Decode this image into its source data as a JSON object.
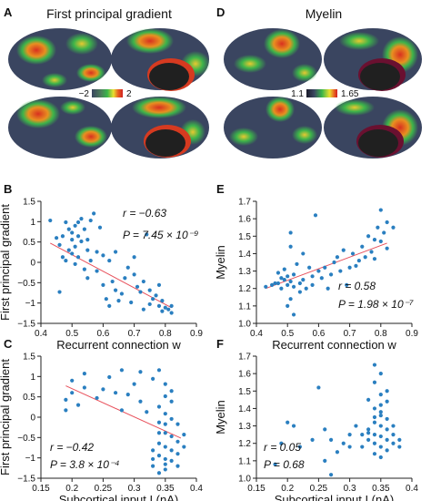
{
  "panels": {
    "A": {
      "letter": "A",
      "title": "First principal gradient",
      "cbar_min": "−2",
      "cbar_max": "2"
    },
    "D": {
      "letter": "D",
      "title": "Myelin",
      "cbar_min": "1.1",
      "cbar_max": "1.65"
    }
  },
  "colors": {
    "point": "#2a7fc0",
    "fit_line": "#e8505b",
    "brain_base": "#3a4560",
    "axis": "#222222"
  },
  "chart_data": [
    {
      "id": "B",
      "letter": "B",
      "type": "scatter",
      "xlabel": "Recurrent connection w",
      "ylabel": "First principal gradient",
      "xlim": [
        0.4,
        0.9
      ],
      "ylim": [
        -1.5,
        2.0
      ],
      "xticks": [
        "0.4",
        "0.5",
        "0.6",
        "0.7",
        "0.8",
        "0.9"
      ],
      "yticks": [
        "−1.5",
        "−1",
        "−0.5",
        "0",
        "0.5",
        "1",
        "1.5"
      ],
      "stat1": "r = −0.63",
      "stat2": "P = 7.45 × 10⁻⁹",
      "fit": [
        [
          0.43,
          0.8
        ],
        [
          0.82,
          -1.05
        ]
      ],
      "points": [
        [
          0.43,
          1.45
        ],
        [
          0.45,
          0.95
        ],
        [
          0.46,
          0.75
        ],
        [
          0.47,
          0.4
        ],
        [
          0.47,
          1.0
        ],
        [
          0.48,
          1.4
        ],
        [
          0.48,
          0.3
        ],
        [
          0.49,
          0.6
        ],
        [
          0.49,
          1.2
        ],
        [
          0.5,
          0.9
        ],
        [
          0.5,
          0.5
        ],
        [
          0.5,
          1.1
        ],
        [
          0.51,
          1.3
        ],
        [
          0.51,
          0.2
        ],
        [
          0.51,
          0.7
        ],
        [
          0.52,
          1.4
        ],
        [
          0.52,
          1.0
        ],
        [
          0.52,
          0.4
        ],
        [
          0.53,
          0.85
        ],
        [
          0.53,
          1.5
        ],
        [
          0.54,
          0.05
        ],
        [
          0.54,
          1.2
        ],
        [
          0.55,
          0.6
        ],
        [
          0.55,
          0.9
        ],
        [
          0.55,
          -0.2
        ],
        [
          0.56,
          1.45
        ],
        [
          0.56,
          0.3
        ],
        [
          0.57,
          1.65
        ],
        [
          0.58,
          0.55
        ],
        [
          0.58,
          0.0
        ],
        [
          0.59,
          1.25
        ],
        [
          0.6,
          -0.4
        ],
        [
          0.6,
          0.45
        ],
        [
          0.61,
          -0.8
        ],
        [
          0.62,
          -1.0
        ],
        [
          0.62,
          0.3
        ],
        [
          0.63,
          -0.3
        ],
        [
          0.64,
          -0.55
        ],
        [
          0.64,
          0.55
        ],
        [
          0.65,
          -0.85
        ],
        [
          0.66,
          -0.65
        ],
        [
          0.67,
          -0.2
        ],
        [
          0.68,
          0.1
        ],
        [
          0.69,
          -0.9
        ],
        [
          0.7,
          -0.1
        ],
        [
          0.7,
          0.4
        ],
        [
          0.71,
          -0.45
        ],
        [
          0.72,
          -0.6
        ],
        [
          0.73,
          -1.1
        ],
        [
          0.73,
          -0.3
        ],
        [
          0.74,
          1.05
        ],
        [
          0.75,
          -0.55
        ],
        [
          0.75,
          -0.95
        ],
        [
          0.76,
          -0.8
        ],
        [
          0.77,
          -0.7
        ],
        [
          0.78,
          -0.4
        ],
        [
          0.78,
          -1.0
        ],
        [
          0.79,
          -1.15
        ],
        [
          0.79,
          -0.85
        ],
        [
          0.8,
          -1.05
        ],
        [
          0.81,
          -1.1
        ],
        [
          0.82,
          -1.2
        ],
        [
          0.82,
          -1.0
        ],
        [
          0.46,
          -0.6
        ]
      ]
    },
    {
      "id": "C",
      "letter": "C",
      "type": "scatter",
      "xlabel": "Subcortical input I (nA)",
      "ylabel": "First principal gradient",
      "xlim": [
        0.15,
        0.4
      ],
      "ylim": [
        -1.5,
        2.0
      ],
      "xticks": [
        "0.15",
        "0.2",
        "0.25",
        "0.3",
        "0.35",
        "0.4"
      ],
      "yticks": [
        "−1.5",
        "−1",
        "−0.5",
        "0",
        "0.5",
        "1",
        "1.5"
      ],
      "stat1": "r = −0.42",
      "stat2": "P = 3.8 × 10⁻⁴",
      "fit": [
        [
          0.19,
          1.15
        ],
        [
          0.375,
          -0.35
        ]
      ],
      "points": [
        [
          0.19,
          0.45
        ],
        [
          0.19,
          0.75
        ],
        [
          0.2,
          1.3
        ],
        [
          0.2,
          0.95
        ],
        [
          0.21,
          0.6
        ],
        [
          0.22,
          1.1
        ],
        [
          0.22,
          1.5
        ],
        [
          0.24,
          0.8
        ],
        [
          0.25,
          1.05
        ],
        [
          0.26,
          1.4
        ],
        [
          0.27,
          0.95
        ],
        [
          0.28,
          0.45
        ],
        [
          0.28,
          1.6
        ],
        [
          0.29,
          0.9
        ],
        [
          0.3,
          1.2
        ],
        [
          0.31,
          0.7
        ],
        [
          0.31,
          1.55
        ],
        [
          0.32,
          0.4
        ],
        [
          0.33,
          -0.95
        ],
        [
          0.33,
          -0.7
        ],
        [
          0.33,
          -1.15
        ],
        [
          0.33,
          1.35
        ],
        [
          0.34,
          -0.5
        ],
        [
          0.34,
          -1.35
        ],
        [
          0.34,
          -0.85
        ],
        [
          0.34,
          0.1
        ],
        [
          0.34,
          0.55
        ],
        [
          0.34,
          1.6
        ],
        [
          0.35,
          -1.1
        ],
        [
          0.35,
          -0.6
        ],
        [
          0.35,
          -0.2
        ],
        [
          0.35,
          0.35
        ],
        [
          0.35,
          0.85
        ],
        [
          0.35,
          1.2
        ],
        [
          0.35,
          -0.95
        ],
        [
          0.35,
          -1.25
        ],
        [
          0.36,
          -0.7
        ],
        [
          0.36,
          -0.3
        ],
        [
          0.36,
          0.2
        ],
        [
          0.36,
          0.7
        ],
        [
          0.36,
          -1.0
        ],
        [
          0.36,
          1.0
        ],
        [
          0.37,
          -0.45
        ],
        [
          0.37,
          -0.8
        ],
        [
          0.37,
          0.05
        ],
        [
          0.37,
          -1.15
        ],
        [
          0.38,
          -0.6
        ],
        [
          0.38,
          -0.25
        ],
        [
          0.34,
          -0.2
        ],
        [
          0.35,
          0.05
        ]
      ]
    },
    {
      "id": "E",
      "letter": "E",
      "type": "scatter",
      "xlabel": "Recurrent connection w",
      "ylabel": "Myelin",
      "xlim": [
        0.4,
        0.9
      ],
      "ylim": [
        1.0,
        1.7
      ],
      "xticks": [
        "0.4",
        "0.5",
        "0.6",
        "0.7",
        "0.8",
        "0.9"
      ],
      "yticks": [
        "1.0",
        "1.1",
        "1.2",
        "1.3",
        "1.4",
        "1.5",
        "1.6",
        "1.7"
      ],
      "stat1": "r = 0.58",
      "stat2": "P = 1.98 × 10⁻⁷",
      "fit": [
        [
          0.43,
          1.2
        ],
        [
          0.82,
          1.46
        ]
      ],
      "points": [
        [
          0.43,
          1.21
        ],
        [
          0.45,
          1.22
        ],
        [
          0.46,
          1.23
        ],
        [
          0.47,
          1.23
        ],
        [
          0.47,
          1.29
        ],
        [
          0.48,
          1.2
        ],
        [
          0.48,
          1.26
        ],
        [
          0.49,
          1.25
        ],
        [
          0.49,
          1.31
        ],
        [
          0.5,
          1.22
        ],
        [
          0.5,
          1.27
        ],
        [
          0.5,
          1.1
        ],
        [
          0.51,
          1.52
        ],
        [
          0.51,
          1.44
        ],
        [
          0.51,
          1.14
        ],
        [
          0.51,
          1.24
        ],
        [
          0.52,
          1.21
        ],
        [
          0.52,
          1.28
        ],
        [
          0.52,
          1.05
        ],
        [
          0.53,
          1.34
        ],
        [
          0.54,
          1.18
        ],
        [
          0.54,
          1.23
        ],
        [
          0.55,
          1.4
        ],
        [
          0.55,
          1.25
        ],
        [
          0.56,
          1.2
        ],
        [
          0.57,
          1.32
        ],
        [
          0.58,
          1.27
        ],
        [
          0.58,
          1.22
        ],
        [
          0.59,
          1.62
        ],
        [
          0.6,
          1.3
        ],
        [
          0.61,
          1.26
        ],
        [
          0.62,
          1.32
        ],
        [
          0.63,
          1.2
        ],
        [
          0.64,
          1.28
        ],
        [
          0.65,
          1.35
        ],
        [
          0.66,
          1.38
        ],
        [
          0.67,
          1.3
        ],
        [
          0.68,
          1.42
        ],
        [
          0.69,
          1.22
        ],
        [
          0.7,
          1.32
        ],
        [
          0.71,
          1.4
        ],
        [
          0.72,
          1.33
        ],
        [
          0.73,
          1.36
        ],
        [
          0.74,
          1.44
        ],
        [
          0.75,
          1.38
        ],
        [
          0.76,
          1.5
        ],
        [
          0.77,
          1.41
        ],
        [
          0.78,
          1.48
        ],
        [
          0.78,
          1.37
        ],
        [
          0.79,
          1.55
        ],
        [
          0.8,
          1.47
        ],
        [
          0.8,
          1.65
        ],
        [
          0.81,
          1.52
        ],
        [
          0.82,
          1.43
        ],
        [
          0.82,
          1.58
        ],
        [
          0.84,
          1.55
        ]
      ]
    },
    {
      "id": "F",
      "letter": "F",
      "type": "scatter",
      "xlabel": "Subcortical input I (nA)",
      "ylabel": "Myelin",
      "xlim": [
        0.15,
        0.4
      ],
      "ylim": [
        1.0,
        1.7
      ],
      "xticks": [
        "0.15",
        "0.2",
        "0.25",
        "0.3",
        "0.35",
        "0.4"
      ],
      "yticks": [
        "1.0",
        "1.1",
        "1.2",
        "1.3",
        "1.4",
        "1.5",
        "1.6",
        "1.7"
      ],
      "stat1": "r = 0.05",
      "stat2": "P = 0.68",
      "fit": null,
      "points": [
        [
          0.18,
          1.08
        ],
        [
          0.19,
          1.2
        ],
        [
          0.2,
          1.32
        ],
        [
          0.21,
          1.3
        ],
        [
          0.22,
          1.18
        ],
        [
          0.24,
          1.22
        ],
        [
          0.25,
          1.52
        ],
        [
          0.26,
          1.28
        ],
        [
          0.26,
          1.1
        ],
        [
          0.27,
          1.02
        ],
        [
          0.27,
          1.22
        ],
        [
          0.28,
          1.15
        ],
        [
          0.29,
          1.2
        ],
        [
          0.3,
          1.18
        ],
        [
          0.3,
          1.25
        ],
        [
          0.31,
          1.3
        ],
        [
          0.32,
          1.18
        ],
        [
          0.33,
          1.45
        ],
        [
          0.33,
          1.28
        ],
        [
          0.33,
          1.22
        ],
        [
          0.34,
          1.4
        ],
        [
          0.34,
          1.55
        ],
        [
          0.34,
          1.65
        ],
        [
          0.34,
          1.35
        ],
        [
          0.34,
          1.25
        ],
        [
          0.34,
          1.2
        ],
        [
          0.34,
          1.14
        ],
        [
          0.35,
          1.6
        ],
        [
          0.35,
          1.48
        ],
        [
          0.35,
          1.42
        ],
        [
          0.35,
          1.3
        ],
        [
          0.35,
          1.24
        ],
        [
          0.35,
          1.18
        ],
        [
          0.35,
          1.12
        ],
        [
          0.35,
          1.36
        ],
        [
          0.36,
          1.5
        ],
        [
          0.36,
          1.28
        ],
        [
          0.36,
          1.22
        ],
        [
          0.36,
          1.16
        ],
        [
          0.36,
          1.44
        ],
        [
          0.37,
          1.2
        ],
        [
          0.37,
          1.25
        ],
        [
          0.37,
          1.3
        ],
        [
          0.38,
          1.22
        ],
        [
          0.38,
          1.18
        ],
        [
          0.34,
          1.32
        ],
        [
          0.35,
          1.38
        ],
        [
          0.36,
          1.34
        ],
        [
          0.33,
          1.26
        ],
        [
          0.32,
          1.25
        ]
      ]
    }
  ]
}
